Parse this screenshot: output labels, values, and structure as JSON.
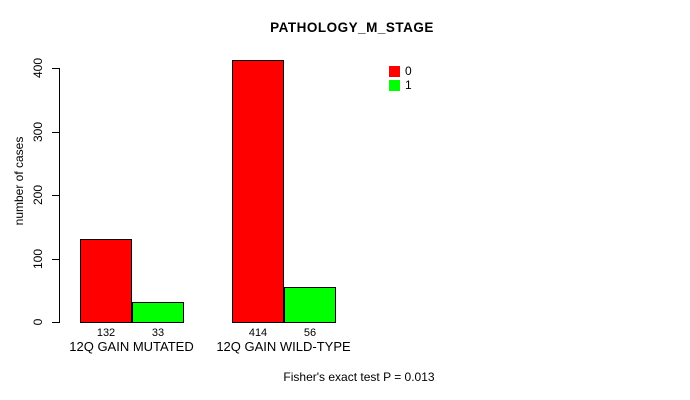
{
  "title": "PATHOLOGY_M_STAGE",
  "y_axis_label": "number of cases",
  "footer_annotation": "Fisher's exact test P = 0.013",
  "chart_data": {
    "type": "bar",
    "title": "PATHOLOGY_M_STAGE",
    "xlabel": "",
    "ylabel": "number of cases",
    "categories": [
      "12Q GAIN MUTATED",
      "12Q GAIN WILD-TYPE"
    ],
    "series": [
      {
        "name": "0",
        "color": "#ff0000",
        "values": [
          132,
          414
        ]
      },
      {
        "name": "1",
        "color": "#00ff00",
        "values": [
          33,
          56
        ]
      }
    ],
    "value_labels": [
      [
        "132",
        "33"
      ],
      [
        "414",
        "56"
      ]
    ],
    "yticks": [
      0,
      100,
      200,
      300,
      400
    ],
    "ylim": [
      0,
      400
    ],
    "grid": false,
    "legend_position": "top-right",
    "legend_entries": [
      {
        "label": "0",
        "color": "#ff0000"
      },
      {
        "label": "1",
        "color": "#00ff00"
      }
    ],
    "annotation": "Fisher's exact test P = 0.013",
    "bar_border_color": "#000000"
  }
}
